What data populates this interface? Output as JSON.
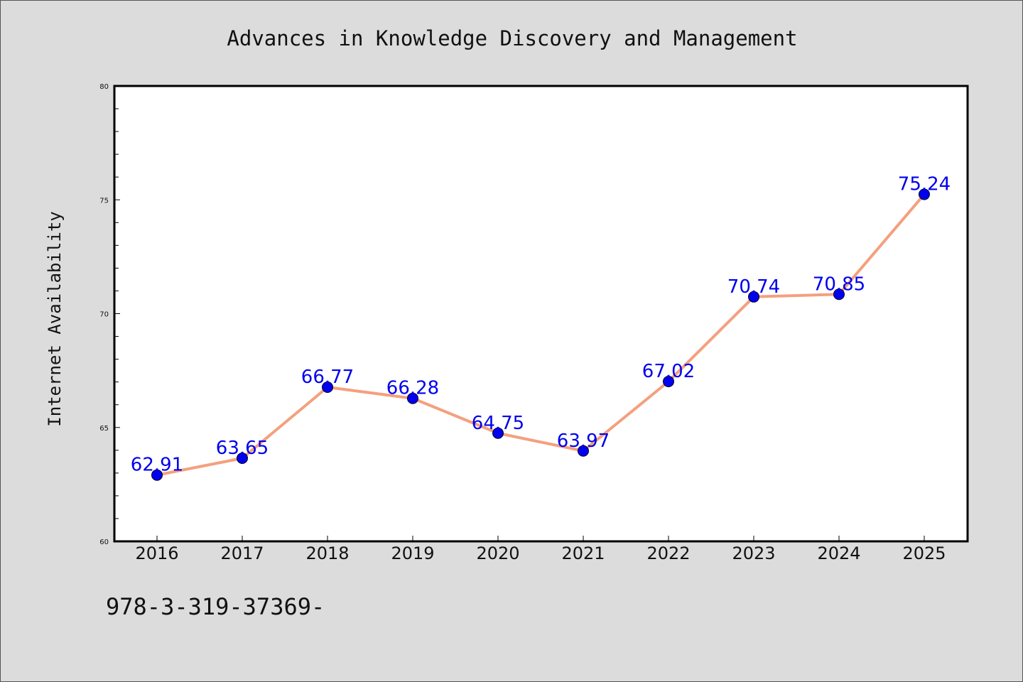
{
  "footer_text": "978-3-319-37369-",
  "chart_data": {
    "type": "line",
    "title": "Advances in Knowledge Discovery and Management",
    "xlabel": "",
    "ylabel": "Internet Availability",
    "categories": [
      "2016",
      "2017",
      "2018",
      "2019",
      "2020",
      "2021",
      "2022",
      "2023",
      "2024",
      "2025"
    ],
    "values": [
      62.91,
      63.65,
      66.77,
      66.28,
      64.75,
      63.97,
      67.02,
      70.74,
      70.85,
      75.24
    ],
    "value_labels": [
      "62.91",
      "63.65",
      "66.77",
      "66.28",
      "64.75",
      "63.97",
      "67.02",
      "70.74",
      "70.85",
      "75.24"
    ],
    "ylim": [
      60,
      80
    ],
    "yticks": [
      60,
      65,
      70,
      75,
      80
    ],
    "grid": false,
    "legend": "none",
    "colors": {
      "line": "#f4a07e",
      "marker": "#0000ee",
      "label": "#0000ee",
      "plot_bg": "#ffffff",
      "page_bg": "#dcdcdc"
    }
  }
}
